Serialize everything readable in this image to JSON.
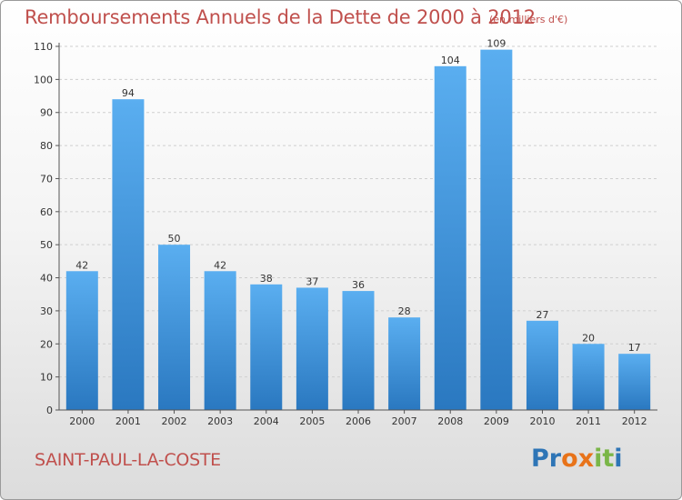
{
  "title": "Remboursements Annuels de la Dette de 2000 à 2012",
  "unit": "(en milliers d'€)",
  "commune": "SAINT-PAUL-LA-COSTE",
  "logo": {
    "letters": [
      "P",
      "r",
      "o",
      "x",
      "i",
      "t",
      "i"
    ],
    "colors": [
      "#2e75b6",
      "#2e75b6",
      "#e8731a",
      "#e8731a",
      "#7ab648",
      "#7ab648",
      "#2e75b6"
    ]
  },
  "colors": {
    "title": "#c0504d",
    "bar": "#4a9fe0",
    "bar_dark": "#2a78c0",
    "grid": "#cccccc"
  },
  "chart_data": {
    "type": "bar",
    "title": "Remboursements Annuels de la Dette de 2000 à 2012",
    "xlabel": "",
    "ylabel": "",
    "ylim": [
      0,
      110
    ],
    "yticks": [
      0,
      10,
      20,
      30,
      40,
      50,
      60,
      70,
      80,
      90,
      100,
      110
    ],
    "grid": "horizontal",
    "categories": [
      "2000",
      "2001",
      "2002",
      "2003",
      "2004",
      "2005",
      "2006",
      "2007",
      "2008",
      "2009",
      "2010",
      "2011",
      "2012"
    ],
    "values": [
      42,
      94,
      50,
      42,
      38,
      37,
      36,
      28,
      104,
      109,
      27,
      20,
      17
    ]
  }
}
